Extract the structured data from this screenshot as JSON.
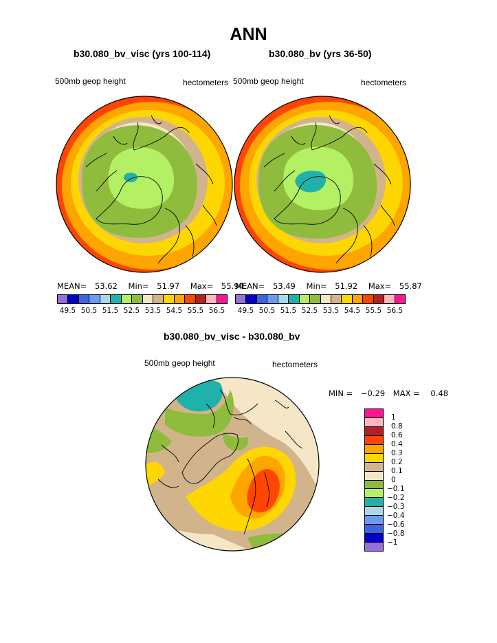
{
  "title": "ANN",
  "panels": [
    {
      "subtitle": "b30.080_bv_visc (yrs 100-114)",
      "left_label": "500mb geop height",
      "right_label": "hectometers",
      "stats": {
        "mean_label": "MEAN=",
        "mean": "53.62",
        "min_label": "Min=",
        "min": "51.97",
        "max_label": "Max=",
        "max": "55.94"
      }
    },
    {
      "subtitle": "b30.080_bv (yrs 36-50)",
      "left_label": "500mb geop height",
      "right_label": "hectometers",
      "stats": {
        "mean_label": "MEAN=",
        "mean": "53.49",
        "min_label": "Min=",
        "min": "51.92",
        "max_label": "Max=",
        "max": "55.87"
      }
    }
  ],
  "colorbar": {
    "colors": [
      "#9370db",
      "#0000c8",
      "#3c64dc",
      "#6b9bf0",
      "#a8d8e8",
      "#20b2aa",
      "#b4f064",
      "#8fbc3c",
      "#f5e6c8",
      "#d2b48c",
      "#ffd700",
      "#ffa500",
      "#ff4500",
      "#b22222",
      "#ffb6c1",
      "#ff1493"
    ],
    "labels": [
      "49.5",
      "50.5",
      "51.5",
      "52.5",
      "53.5",
      "54.5",
      "55.5",
      "56.5"
    ]
  },
  "diff": {
    "subtitle": "b30.080_bv_visc - b30.080_bv",
    "left_label": "500mb geop height",
    "right_label": "hectometers",
    "stats": {
      "min_label": "MIN =",
      "min": "−0.29",
      "max_label": "MAX =",
      "max": "0.48"
    },
    "colorbar": {
      "colors_top_to_bottom": [
        "#ff1493",
        "#ffb6c1",
        "#b22222",
        "#ff4500",
        "#ffa500",
        "#ffd700",
        "#d2b48c",
        "#f5e6c8",
        "#8fbc3c",
        "#b4f064",
        "#20b2aa",
        "#a8d8e8",
        "#6b9bf0",
        "#3c64dc",
        "#0000c8",
        "#9370db"
      ],
      "labels_top_to_bottom": [
        "1",
        "0.8",
        "0.6",
        "0.4",
        "0.3",
        "0.2",
        "0.1",
        "0",
        "−0.1",
        "−0.2",
        "−0.3",
        "−0.4",
        "−0.6",
        "−0.8",
        "−1"
      ]
    }
  }
}
